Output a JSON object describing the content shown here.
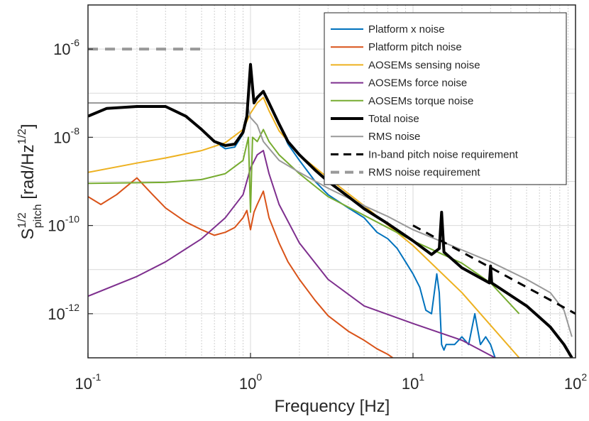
{
  "chart_data": {
    "type": "line",
    "title": "",
    "xlabel": "Frequency [Hz]",
    "ylabel": {
      "base": "S",
      "sup": "1/2",
      "sub": "pitch",
      "unit_open": " [rad/Hz",
      "unit_sup": "1/2",
      "unit_close": "]"
    },
    "x_scale": "log",
    "y_scale": "log",
    "xlim": [
      0.1,
      100
    ],
    "ylim": [
      1e-13,
      1e-05
    ],
    "x_ticks": [
      {
        "value": 0.1,
        "base": "10",
        "exp": "-1"
      },
      {
        "value": 1,
        "base": "10",
        "exp": "0"
      },
      {
        "value": 10,
        "base": "10",
        "exp": "1"
      },
      {
        "value": 100,
        "base": "10",
        "exp": "2"
      }
    ],
    "y_ticks": [
      {
        "value": 1e-12,
        "base": "10",
        "exp": "-12"
      },
      {
        "value": 1e-10,
        "base": "10",
        "exp": "-10"
      },
      {
        "value": 1e-08,
        "base": "10",
        "exp": "-8"
      },
      {
        "value": 1e-06,
        "base": "10",
        "exp": "-6"
      }
    ],
    "grid": true,
    "legend_position": "top-right",
    "series": [
      {
        "name": "Platform x noise",
        "color": "#0072BD",
        "width": 2,
        "dash": "",
        "x": [
          0.1,
          0.13,
          0.2,
          0.3,
          0.4,
          0.5,
          0.6,
          0.7,
          0.8,
          0.9,
          0.95,
          1.0,
          1.05,
          1.1,
          1.2,
          1.3,
          1.5,
          1.7,
          2.0,
          2.5,
          3.0,
          4.0,
          5.0,
          6.0,
          7.0,
          8.0,
          9.0,
          10,
          11,
          12,
          13,
          14,
          14.5,
          15,
          15.5,
          16,
          18,
          20,
          22,
          24,
          26,
          28,
          30,
          32
        ],
        "y": [
          3e-08,
          4.5e-08,
          5e-08,
          5e-08,
          3e-08,
          1.5e-08,
          8e-09,
          5.5e-09,
          6e-09,
          1.2e-08,
          2.5e-08,
          4e-07,
          6e-08,
          8e-08,
          1.1e-07,
          6e-08,
          2e-08,
          7e-09,
          3e-09,
          1e-09,
          5e-10,
          2.5e-10,
          1.5e-10,
          7e-11,
          5e-11,
          3e-11,
          1.5e-11,
          8e-12,
          4e-12,
          1.2e-12,
          1e-12,
          8e-12,
          3e-12,
          2e-13,
          1.5e-13,
          2e-13,
          2e-13,
          3e-13,
          2e-13,
          1e-12,
          2e-13,
          3e-13,
          2e-13,
          1e-13
        ]
      },
      {
        "name": "Platform pitch noise",
        "color": "#D95319",
        "width": 2,
        "dash": "",
        "x": [
          0.1,
          0.12,
          0.15,
          0.2,
          0.25,
          0.3,
          0.4,
          0.5,
          0.6,
          0.7,
          0.8,
          0.9,
          0.95,
          1.0,
          1.05,
          1.1,
          1.2,
          1.3,
          1.5,
          1.7,
          2.0,
          2.5,
          3.0,
          4.0,
          5.0,
          6.0,
          7.0,
          7.5
        ],
        "y": [
          4.5e-10,
          3e-10,
          5e-10,
          1.2e-09,
          5e-10,
          2.5e-10,
          1.2e-10,
          8e-11,
          6e-11,
          7e-11,
          9e-11,
          1.5e-10,
          2.2e-10,
          8e-11,
          2e-10,
          3e-10,
          6e-10,
          1.5e-10,
          4e-11,
          1.5e-11,
          6e-12,
          2e-12,
          9e-13,
          4e-13,
          2.5e-13,
          1.6e-13,
          1.2e-13,
          1e-13
        ]
      },
      {
        "name": "AOSEMs sensing noise",
        "color": "#EDB120",
        "width": 2,
        "dash": "",
        "x": [
          0.1,
          0.2,
          0.3,
          0.5,
          0.7,
          0.9,
          1.0,
          1.1,
          1.2,
          1.3,
          1.5,
          2,
          3,
          5,
          10,
          20,
          45
        ],
        "y": [
          1.6e-09,
          2.6e-09,
          3.4e-09,
          5e-09,
          7.5e-09,
          1.5e-08,
          3.5e-08,
          6e-08,
          8e-08,
          4e-08,
          1.4e-08,
          4e-09,
          1.2e-09,
          2.8e-10,
          3.5e-11,
          3e-12,
          1e-13
        ]
      },
      {
        "name": "AOSEMs force noise",
        "color": "#7E2F8E",
        "width": 2,
        "dash": "",
        "x": [
          0.1,
          0.2,
          0.3,
          0.5,
          0.7,
          0.9,
          1.0,
          1.1,
          1.2,
          1.3,
          1.5,
          2,
          3,
          5,
          10,
          20,
          32
        ],
        "y": [
          2.5e-12,
          7e-12,
          1.5e-11,
          5e-11,
          1.5e-10,
          5e-10,
          2e-09,
          4e-09,
          5e-09,
          1.5e-09,
          3e-10,
          4e-11,
          6e-12,
          1.5e-12,
          6e-13,
          2.5e-13,
          1e-13
        ]
      },
      {
        "name": "AOSEMs torque noise",
        "color": "#77AC30",
        "width": 2,
        "dash": "",
        "x": [
          0.1,
          0.3,
          0.5,
          0.7,
          0.9,
          0.97,
          1.0,
          1.03,
          1.1,
          1.2,
          1.3,
          1.5,
          2,
          3,
          5,
          10,
          20,
          30,
          45
        ],
        "y": [
          9e-10,
          9.5e-10,
          1.1e-09,
          1.5e-09,
          3e-09,
          1e-08,
          2e-10,
          1e-08,
          8e-09,
          1.5e-08,
          8e-09,
          4e-09,
          1.5e-09,
          4.5e-10,
          1.7e-10,
          4.5e-11,
          1.4e-11,
          5e-12,
          1e-12
        ]
      },
      {
        "name": "Total noise",
        "color": "#000000",
        "width": 4,
        "dash": "",
        "x": [
          0.1,
          0.13,
          0.2,
          0.3,
          0.4,
          0.5,
          0.6,
          0.7,
          0.8,
          0.9,
          0.95,
          1.0,
          1.05,
          1.1,
          1.2,
          1.3,
          1.5,
          1.7,
          2.0,
          2.5,
          3.0,
          4.0,
          5.0,
          7.0,
          10,
          13,
          14.5,
          15,
          15.5,
          20,
          29.5,
          30,
          30.5,
          50,
          70,
          85,
          95
        ],
        "y": [
          3e-08,
          4.5e-08,
          5e-08,
          5e-08,
          3e-08,
          1.5e-08,
          8e-09,
          6.5e-09,
          7e-09,
          1.3e-08,
          3e-08,
          4.5e-07,
          6e-08,
          8e-08,
          1.1e-07,
          6e-08,
          2e-08,
          8e-09,
          4e-09,
          1.8e-09,
          1e-09,
          4.5e-10,
          2.4e-10,
          1.1e-10,
          4.5e-11,
          2.2e-11,
          3e-11,
          2e-10,
          2.5e-11,
          1.1e-11,
          5e-12,
          1.2e-11,
          5e-12,
          1.5e-12,
          5e-13,
          2e-13,
          1e-13
        ]
      },
      {
        "name": "RMS noise",
        "color": "#999999",
        "width": 2,
        "dash": "",
        "x": [
          0.1,
          0.5,
          0.8,
          0.95,
          1.0,
          1.1,
          1.2,
          1.5,
          2,
          3,
          5,
          7,
          10,
          20,
          30,
          50,
          70,
          85,
          95
        ],
        "y": [
          6e-08,
          6e-08,
          6e-08,
          5.9e-08,
          2.8e-08,
          1.9e-08,
          8e-09,
          3e-09,
          1.6e-09,
          7e-10,
          2.8e-10,
          1.6e-10,
          8e-11,
          2.8e-11,
          1.5e-11,
          6e-12,
          3e-12,
          1.2e-12,
          3e-13
        ]
      },
      {
        "name": "In-band pitch noise requirement",
        "color": "#000000",
        "width": 3,
        "dash": "12,9",
        "x": [
          10,
          100
        ],
        "y": [
          1e-10,
          1e-12
        ]
      },
      {
        "name": "RMS noise requirement",
        "color": "#999999",
        "width": 4,
        "dash": "14,10",
        "x": [
          0.1,
          0.5
        ],
        "y": [
          1e-06,
          1e-06
        ]
      }
    ]
  }
}
